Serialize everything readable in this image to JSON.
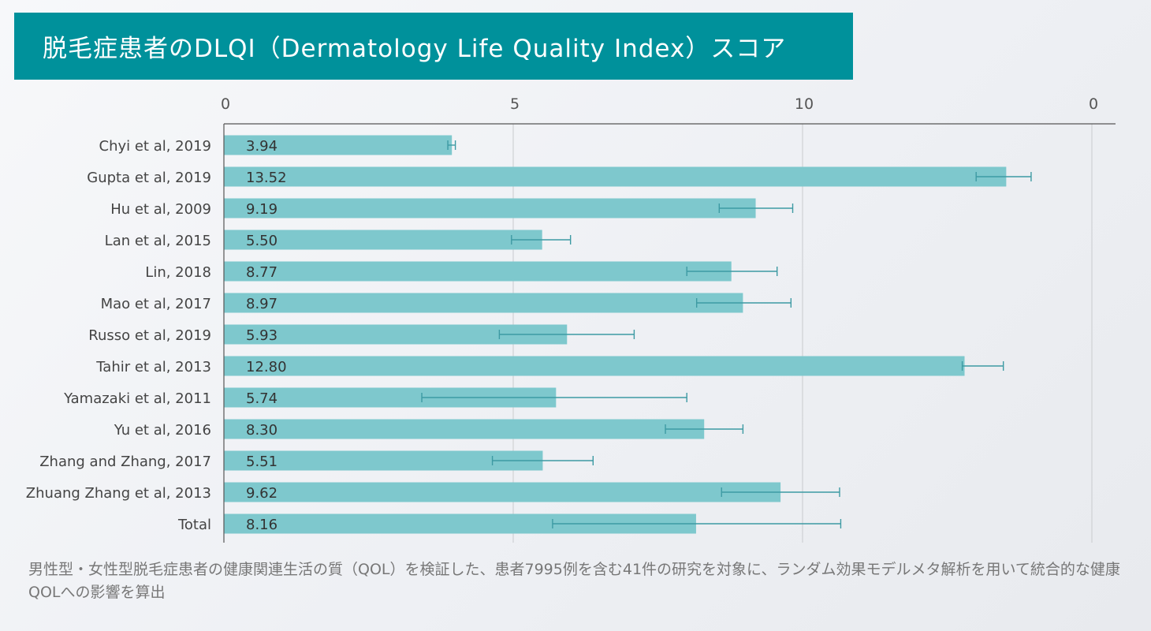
{
  "title": "脱毛症患者のDLQI（Dermatology Life Quality Index）スコア",
  "caption": "男性型・女性型脱毛症患者の健康関連生活の質（QOL）を検証した、患者7995例を含む41件の研究を対象に、ランダム効果モデルメタ解析を用いて統合的な健康QOLへの影響を算出",
  "colors": {
    "title_bg": "#00919b",
    "bar": "#7ec8cd",
    "error_bar": "#3d9aa3"
  },
  "chart_data": {
    "type": "bar",
    "orientation": "horizontal",
    "title": "",
    "xlabel": "",
    "ylabel": "",
    "tick_labels": [
      "0",
      "5",
      "10",
      "0"
    ],
    "xlim": [
      0,
      15
    ],
    "grid": true,
    "categories": [
      "Chyi et al, 2019",
      "Gupta et al, 2019",
      "Hu et al, 2009",
      "Lan et al, 2015",
      "Lin, 2018",
      "Mao et al, 2017",
      "Russo et al, 2019",
      "Tahir et al, 2013",
      "Yamazaki et al, 2011",
      "Yu et al, 2016",
      "Zhang and Zhang, 2017",
      "Zhuang Zhang et al, 2013",
      "Total"
    ],
    "values": [
      3.94,
      13.52,
      9.19,
      5.5,
      8.77,
      8.97,
      5.93,
      12.8,
      5.74,
      8.3,
      5.51,
      9.62,
      8.16
    ],
    "value_labels": [
      "3.94",
      "13.52",
      "9.19",
      "5.50",
      "8.77",
      "8.97",
      "5.93",
      "12.80",
      "5.74",
      "8.30",
      "5.51",
      "9.62",
      "8.16"
    ],
    "error_low": [
      3.87,
      13.0,
      8.56,
      4.97,
      8.0,
      8.17,
      4.76,
      12.76,
      3.42,
      7.63,
      4.64,
      8.6,
      5.68
    ],
    "error_high": [
      4.0,
      13.95,
      9.83,
      5.99,
      9.56,
      9.8,
      7.09,
      13.47,
      8.0,
      8.97,
      6.38,
      10.64,
      10.66
    ]
  }
}
